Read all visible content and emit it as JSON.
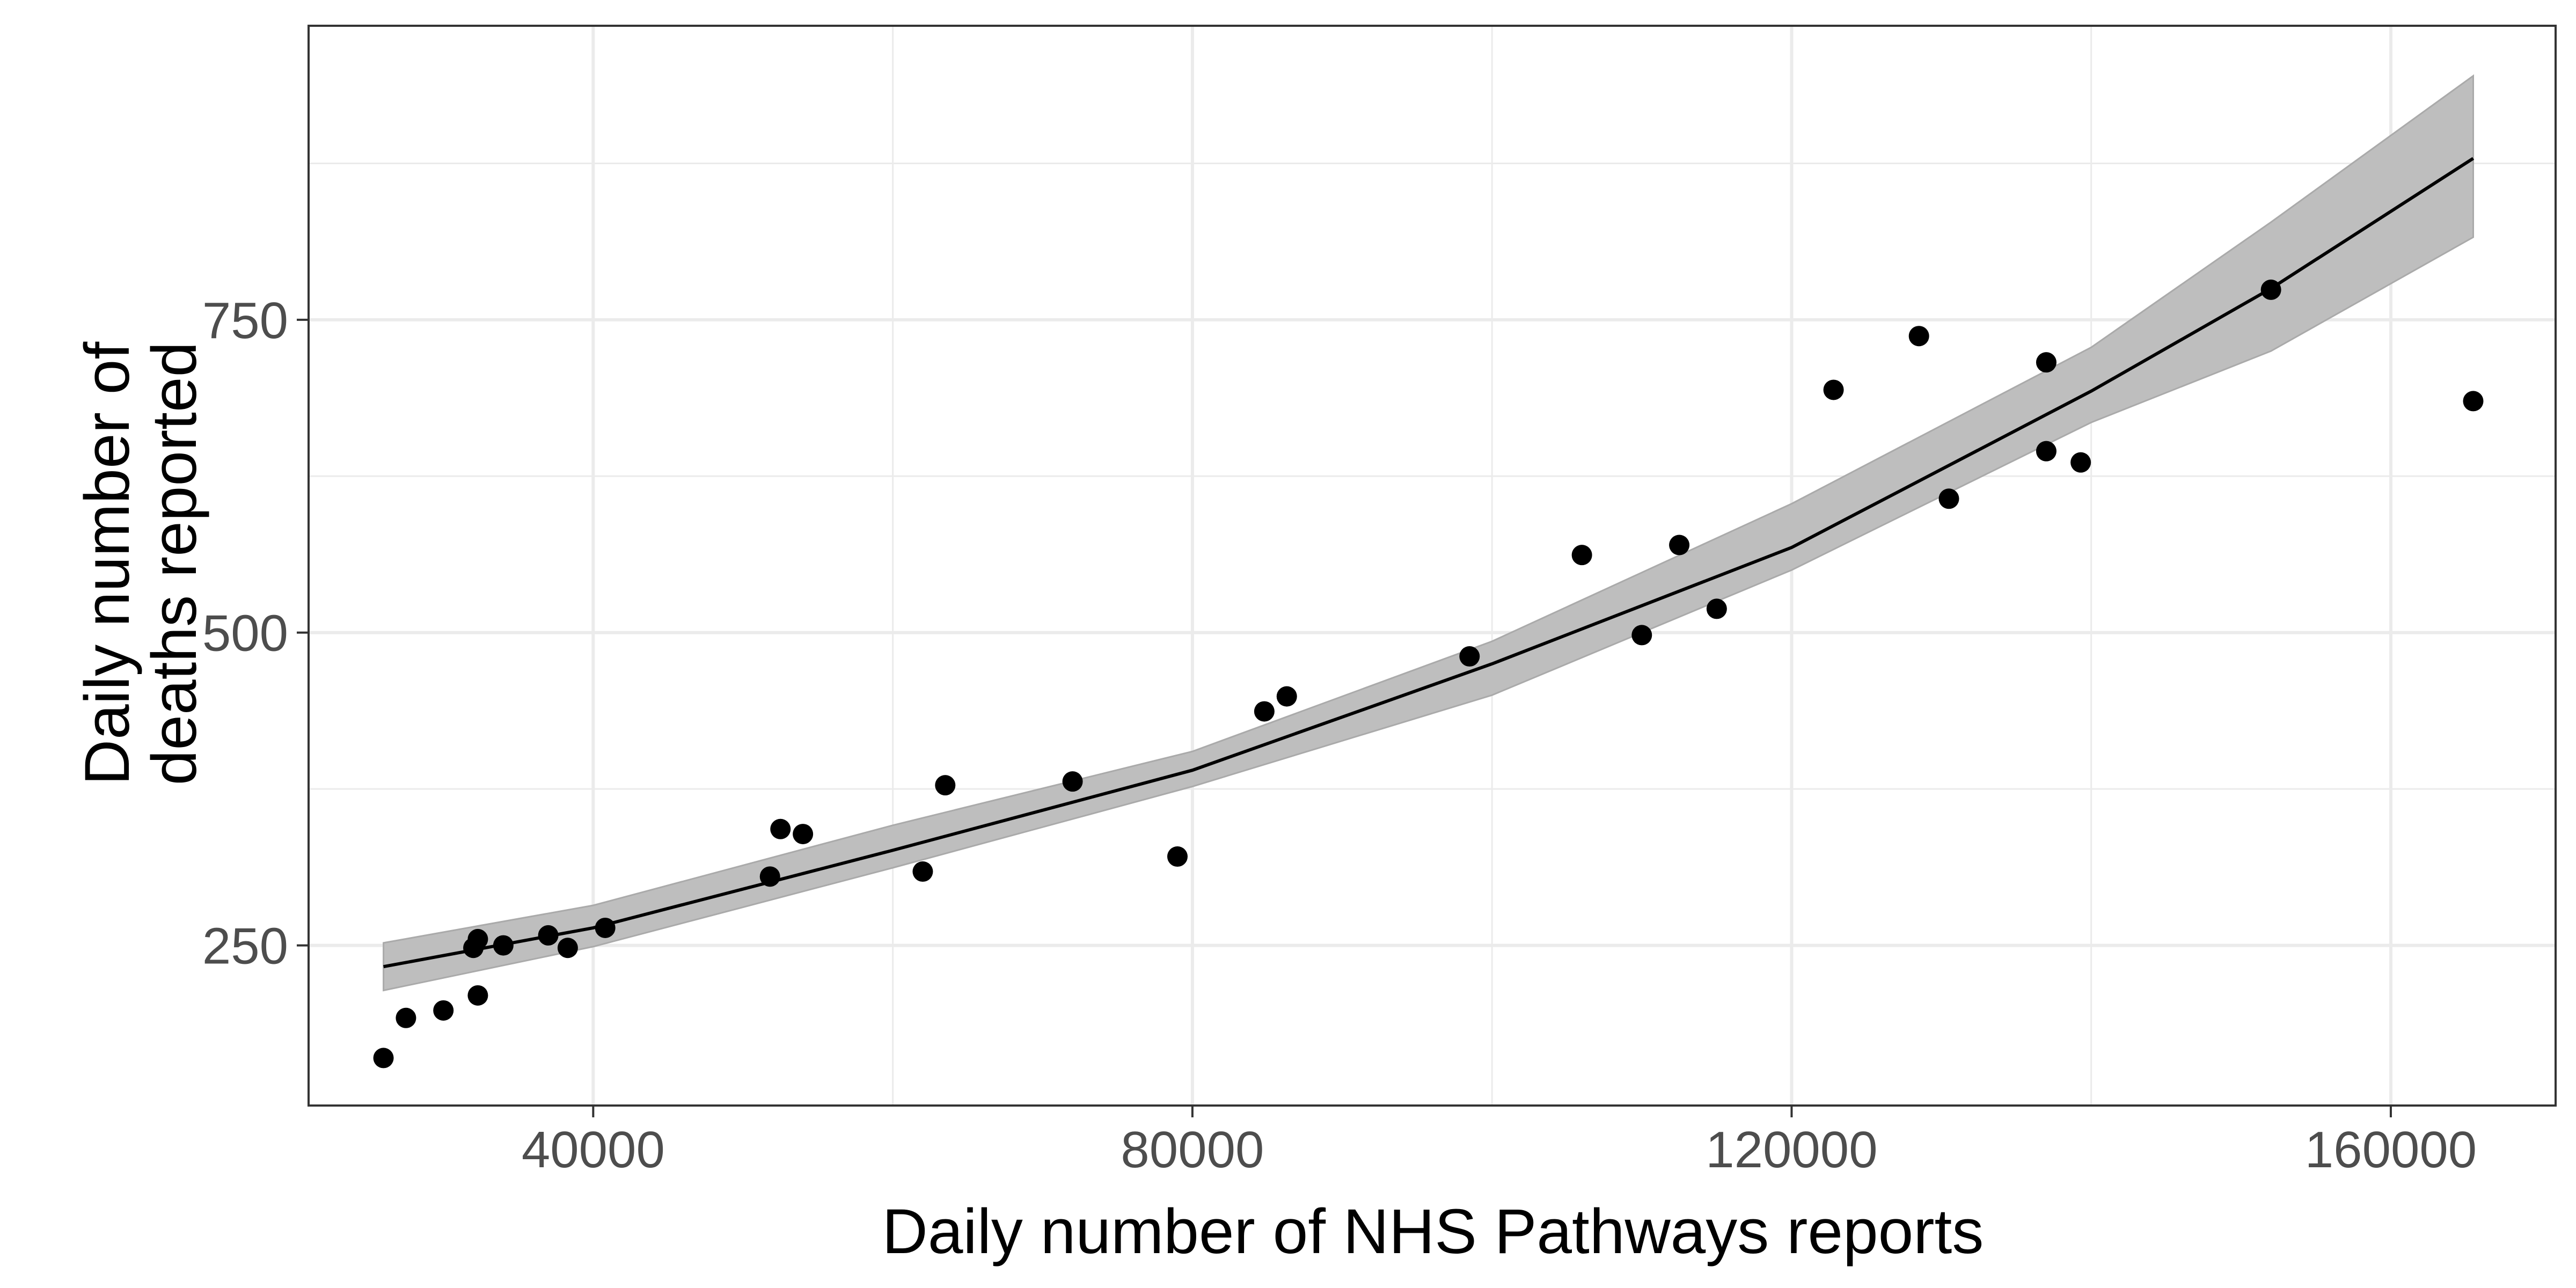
{
  "chart_data": {
    "type": "scatter",
    "title": "",
    "xlabel": "Daily number of NHS Pathways reports",
    "ylabel_lines": [
      "Daily number of",
      "deaths reported"
    ],
    "xlim": [
      21000,
      171000
    ],
    "ylim": [
      122,
      985
    ],
    "x_ticks": [
      40000,
      80000,
      120000,
      160000
    ],
    "x_tick_labels": [
      "40000",
      "80000",
      "120000",
      "160000"
    ],
    "y_ticks": [
      250,
      500,
      750
    ],
    "y_tick_labels": [
      "250",
      "500",
      "750"
    ],
    "x_minor_grid": [
      60000,
      100000,
      140000
    ],
    "y_minor_grid": [
      375,
      625,
      875
    ],
    "grid": true,
    "points": [
      {
        "x": 26000,
        "y": 160
      },
      {
        "x": 27500,
        "y": 192
      },
      {
        "x": 30000,
        "y": 198
      },
      {
        "x": 32000,
        "y": 248
      },
      {
        "x": 32300,
        "y": 255
      },
      {
        "x": 32300,
        "y": 210
      },
      {
        "x": 34000,
        "y": 250
      },
      {
        "x": 37000,
        "y": 258
      },
      {
        "x": 38300,
        "y": 248
      },
      {
        "x": 40800,
        "y": 264
      },
      {
        "x": 51800,
        "y": 305
      },
      {
        "x": 52500,
        "y": 343
      },
      {
        "x": 54000,
        "y": 339
      },
      {
        "x": 62000,
        "y": 309
      },
      {
        "x": 63500,
        "y": 378
      },
      {
        "x": 72000,
        "y": 381
      },
      {
        "x": 79000,
        "y": 321
      },
      {
        "x": 84800,
        "y": 437
      },
      {
        "x": 86300,
        "y": 449
      },
      {
        "x": 98500,
        "y": 481
      },
      {
        "x": 106000,
        "y": 562
      },
      {
        "x": 110000,
        "y": 498
      },
      {
        "x": 112500,
        "y": 570
      },
      {
        "x": 115000,
        "y": 519
      },
      {
        "x": 122800,
        "y": 694
      },
      {
        "x": 128500,
        "y": 737
      },
      {
        "x": 130500,
        "y": 607
      },
      {
        "x": 137000,
        "y": 716
      },
      {
        "x": 137000,
        "y": 645
      },
      {
        "x": 139300,
        "y": 636
      },
      {
        "x": 152000,
        "y": 774
      },
      {
        "x": 165500,
        "y": 685
      }
    ],
    "fit_line": {
      "x": [
        26000,
        40000,
        60000,
        80000,
        100000,
        120000,
        140000,
        152000,
        165500
      ],
      "y": [
        233,
        264,
        326,
        390,
        475,
        568,
        693,
        775,
        879
      ],
      "lower": [
        214,
        249,
        312,
        377,
        450,
        550,
        668,
        725,
        816
      ],
      "upper": [
        252,
        282,
        346,
        405,
        493,
        603,
        728,
        828,
        945
      ]
    },
    "colors": {
      "points": "#000000",
      "line": "#000000",
      "ribbon": "#bebebe",
      "grid": "#ebebeb",
      "border": "#333333"
    }
  }
}
